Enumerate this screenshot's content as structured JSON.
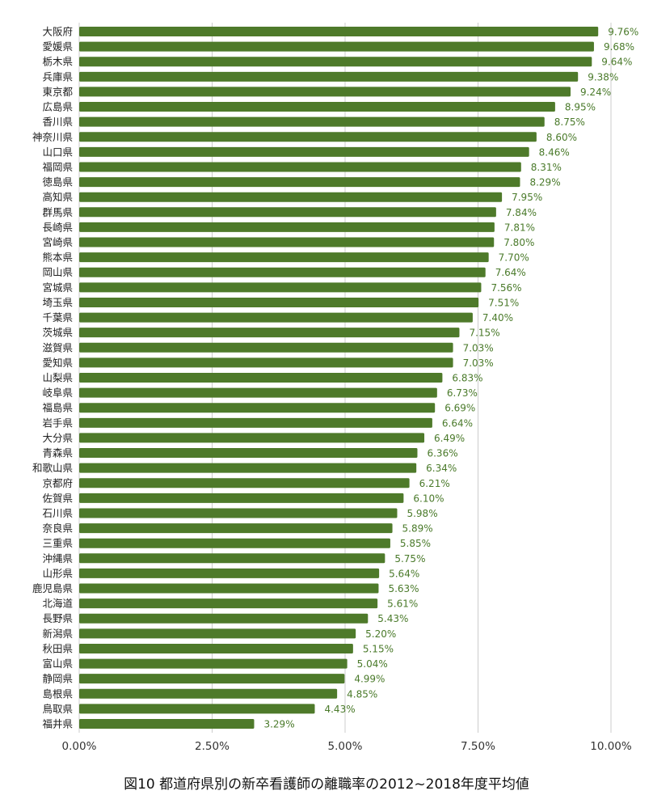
{
  "caption": "図10 都道府県別の新卒看護師の離職率の2012~2018年度平均値",
  "colors": {
    "bar": "#4e7a2a",
    "value_label": "#4a7a2a",
    "grid": "#cccccc"
  },
  "chart_data": {
    "type": "bar",
    "orientation": "horizontal",
    "title": "",
    "xlabel": "",
    "ylabel": "",
    "xlim": [
      0,
      10
    ],
    "xticks": [
      "0.00%",
      "2.50%",
      "5.00%",
      "7.50%",
      "10.00%"
    ],
    "grid": "vertical",
    "categories": [
      "大阪府",
      "愛媛県",
      "栃木県",
      "兵庫県",
      "東京都",
      "広島県",
      "香川県",
      "神奈川県",
      "山口県",
      "福岡県",
      "徳島県",
      "高知県",
      "群馬県",
      "長崎県",
      "宮崎県",
      "熊本県",
      "岡山県",
      "宮城県",
      "埼玉県",
      "千葉県",
      "茨城県",
      "滋賀県",
      "愛知県",
      "山梨県",
      "岐阜県",
      "福島県",
      "岩手県",
      "大分県",
      "青森県",
      "和歌山県",
      "京都府",
      "佐賀県",
      "石川県",
      "奈良県",
      "三重県",
      "沖縄県",
      "山形県",
      "鹿児島県",
      "北海道",
      "長野県",
      "新潟県",
      "秋田県",
      "富山県",
      "静岡県",
      "島根県",
      "鳥取県",
      "福井県"
    ],
    "values": [
      9.76,
      9.68,
      9.64,
      9.38,
      9.24,
      8.95,
      8.75,
      8.6,
      8.46,
      8.31,
      8.29,
      7.95,
      7.84,
      7.81,
      7.8,
      7.7,
      7.64,
      7.56,
      7.51,
      7.4,
      7.15,
      7.03,
      7.03,
      6.83,
      6.73,
      6.69,
      6.64,
      6.49,
      6.36,
      6.34,
      6.21,
      6.1,
      5.98,
      5.89,
      5.85,
      5.75,
      5.64,
      5.63,
      5.61,
      5.43,
      5.2,
      5.15,
      5.04,
      4.99,
      4.85,
      4.43,
      3.29
    ],
    "value_labels": [
      "9.76%",
      "9.68%",
      "9.64%",
      "9.38%",
      "9.24%",
      "8.95%",
      "8.75%",
      "8.60%",
      "8.46%",
      "8.31%",
      "8.29%",
      "7.95%",
      "7.84%",
      "7.81%",
      "7.80%",
      "7.70%",
      "7.64%",
      "7.56%",
      "7.51%",
      "7.40%",
      "7.15%",
      "7.03%",
      "7.03%",
      "6.83%",
      "6.73%",
      "6.69%",
      "6.64%",
      "6.49%",
      "6.36%",
      "6.34%",
      "6.21%",
      "6.10%",
      "5.98%",
      "5.89%",
      "5.85%",
      "5.75%",
      "5.64%",
      "5.63%",
      "5.61%",
      "5.43%",
      "5.20%",
      "5.15%",
      "5.04%",
      "4.99%",
      "4.85%",
      "4.43%",
      "3.29%"
    ]
  }
}
